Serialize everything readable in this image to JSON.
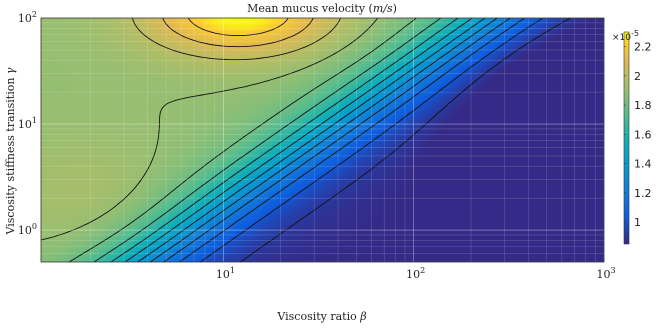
{
  "chart_data": {
    "type": "contour",
    "title": "Mean mucus velocity (m/s)",
    "title_parts": [
      "Mean mucus velocity (",
      "m/s",
      ")"
    ],
    "xlabel": "Viscosity ratio β",
    "xlabel_parts": [
      "Viscosity ratio ",
      "β"
    ],
    "ylabel": "Viscosity stiffness transition γ",
    "ylabel_parts": [
      "Viscosity stiffness transition ",
      "γ"
    ],
    "x_scale": "log",
    "y_scale": "log",
    "xlim": [
      1.1,
      1000
    ],
    "ylim": [
      0.5,
      100
    ],
    "x_ticks": [
      {
        "value": 10,
        "base": "10",
        "exp": "1"
      },
      {
        "value": 100,
        "base": "10",
        "exp": "2"
      },
      {
        "value": 1000,
        "base": "10",
        "exp": "3"
      }
    ],
    "y_ticks": [
      {
        "value": 1,
        "base": "10",
        "exp": "0"
      },
      {
        "value": 10,
        "base": "10",
        "exp": "1"
      },
      {
        "value": 100,
        "base": "10",
        "exp": "2"
      }
    ],
    "grid": true,
    "colormap": "parula",
    "colorbar": {
      "multiplier": "×10",
      "multiplier_exp": "-5",
      "min": 0.85,
      "max": 2.3,
      "ticks": [
        "1",
        "1.2",
        "1.4",
        "1.6",
        "1.8",
        "2",
        "2.2"
      ],
      "tick_values": [
        1.0,
        1.2,
        1.4,
        1.6,
        1.8,
        2.0,
        2.2
      ]
    },
    "field_description": "Velocity peaks (~2.3e-5 m/s) near beta≈10-15, gamma≈100; plateau ~1.9e-5 at low beta; decreases toward ~0.85e-5 at beta=1000, gamma≈5-20.",
    "contour_levels": [
      0.9,
      1.0,
      1.1,
      1.2,
      1.3,
      1.4,
      1.5,
      1.6,
      1.7,
      1.8,
      1.9,
      2.0,
      2.1,
      2.2
    ]
  }
}
